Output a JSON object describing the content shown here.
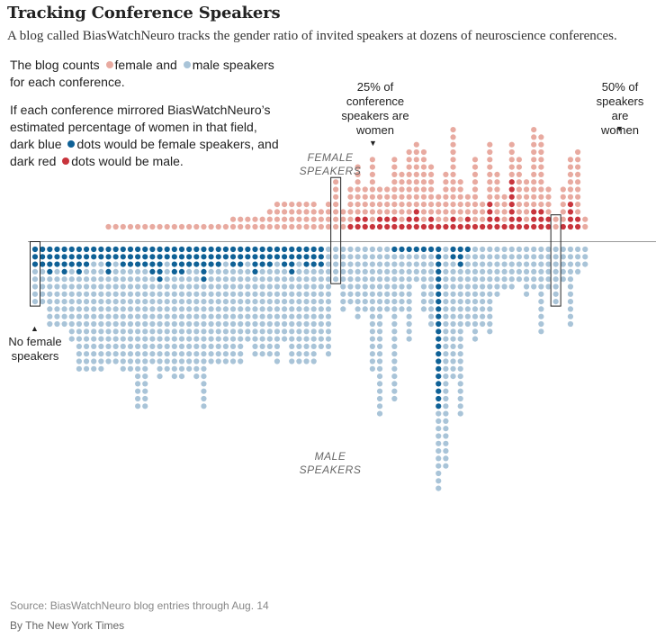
{
  "title": "Tracking Conference Speakers",
  "subtitle": "A blog called BiasWatchNeuro tracks the gender ratio of invited speakers at dozens of neuroscience conferences.",
  "intro": {
    "p1_a": "The blog counts",
    "p1_b": "female and",
    "p1_c": "male speakers for each conference.",
    "p2_a": "If each conference mirrored BiasWatchNeuro’s estimated percentage of women in that field, dark blue",
    "p2_b": "dots would be female speakers, and dark red",
    "p2_c": "dots would be male."
  },
  "annotations": {
    "no_female": "No female speakers",
    "pct25": "25% of conference speakers are women",
    "pct50": "50% of speakers are women",
    "female_group": "FEMALE SPEAKERS",
    "male_group": "MALE SPEAKERS",
    "arrow_up": "▲",
    "arrow_down": "▼"
  },
  "source": "Source: BiasWatchNeuro blog entries through Aug. 14",
  "credit": "By The New York Times",
  "colors": {
    "female": "#e8aaa0",
    "male": "#a9c4d8",
    "dark_blue": "#0f6196",
    "dark_red": "#c8343c",
    "axis": "#999999"
  },
  "chart_data": {
    "type": "dot-column",
    "x": "conference (sorted by share of female speakers)",
    "series": [
      {
        "name": "female",
        "values": [
          0,
          0,
          0,
          0,
          0,
          0,
          0,
          0,
          0,
          0,
          1,
          1,
          1,
          1,
          1,
          1,
          1,
          1,
          1,
          1,
          1,
          1,
          1,
          1,
          1,
          1,
          1,
          2,
          2,
          2,
          2,
          2,
          3,
          4,
          4,
          4,
          4,
          4,
          4,
          3,
          4,
          7,
          3,
          6,
          9,
          6,
          10,
          6,
          6,
          10,
          8,
          11,
          12,
          11,
          9,
          5,
          8,
          14,
          7,
          5,
          10,
          4,
          12,
          8,
          5,
          12,
          10,
          7,
          14,
          13,
          6,
          2,
          6,
          10,
          11,
          2
        ]
      },
      {
        "name": "male",
        "values": [
          8,
          8,
          11,
          11,
          11,
          13,
          17,
          17,
          17,
          17,
          16,
          16,
          17,
          17,
          22,
          22,
          16,
          18,
          17,
          18,
          18,
          17,
          18,
          22,
          16,
          16,
          16,
          16,
          16,
          13,
          15,
          15,
          15,
          16,
          13,
          16,
          16,
          16,
          16,
          14,
          15,
          5,
          9,
          8,
          10,
          9,
          17,
          23,
          9,
          21,
          9,
          13,
          5,
          9,
          11,
          33,
          30,
          18,
          23,
          11,
          13,
          11,
          12,
          7,
          6,
          6,
          5,
          7,
          6,
          12,
          6,
          8,
          5,
          11,
          4,
          3
        ]
      },
      {
        "name": "expected female",
        "values": [
          3,
          3,
          4,
          3,
          4,
          3,
          4,
          3,
          2,
          2,
          4,
          2,
          3,
          3,
          3,
          3,
          4,
          5,
          2,
          4,
          4,
          3,
          3,
          5,
          3,
          3,
          2,
          3,
          3,
          2,
          4,
          3,
          3,
          2,
          3,
          4,
          2,
          3,
          3,
          3,
          0,
          0,
          0,
          0,
          0,
          0,
          0,
          0,
          0,
          1,
          1,
          1,
          1,
          1,
          1,
          22,
          0,
          2,
          3,
          1,
          0,
          0,
          0,
          0,
          0,
          0,
          0,
          0,
          0,
          0,
          0,
          0,
          0,
          0,
          0,
          0
        ]
      },
      {
        "name": "expected male",
        "values": [
          0,
          0,
          0,
          0,
          0,
          0,
          0,
          0,
          0,
          0,
          0,
          0,
          0,
          0,
          0,
          0,
          0,
          0,
          0,
          0,
          0,
          0,
          0,
          0,
          0,
          0,
          0,
          0,
          0,
          0,
          0,
          0,
          0,
          0,
          0,
          0,
          0,
          0,
          0,
          0,
          0,
          0,
          0,
          1,
          2,
          2,
          1,
          2,
          2,
          2,
          1,
          2,
          3,
          1,
          2,
          1,
          1,
          2,
          1,
          2,
          1,
          1,
          4,
          2,
          1,
          7,
          2,
          1,
          3,
          3,
          2,
          0,
          1,
          4,
          2,
          0
        ]
      }
    ],
    "highlighted_conferences": [
      {
        "label": "No female speakers",
        "index": 0
      },
      {
        "label": "25% of conference speakers are women",
        "index": 41
      },
      {
        "label": "50% of speakers are women",
        "index": 71
      }
    ]
  }
}
